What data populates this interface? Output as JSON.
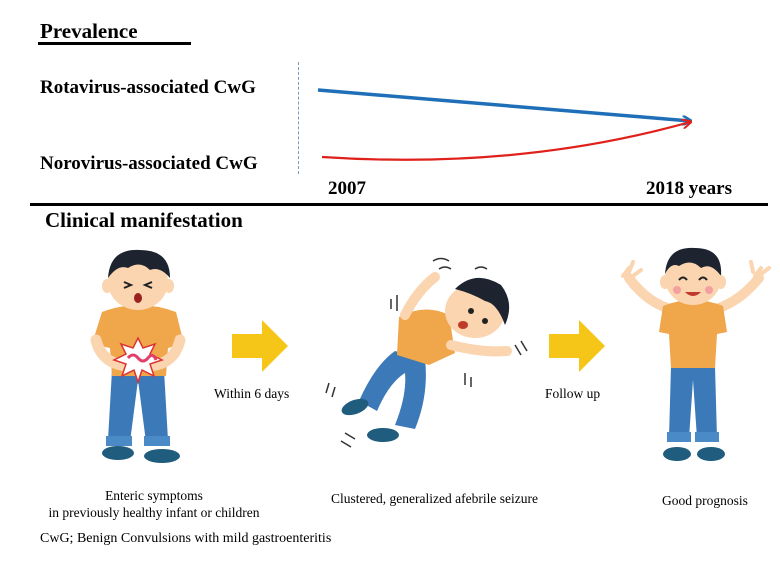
{
  "prevalence": {
    "title": "Prevalence",
    "rotavirus_label": "Rotavirus-associated CwG",
    "norovirus_label": "Norovirus-associated CwG",
    "axis_start": "2007",
    "axis_end": "2018 years",
    "rotavirus_color": "#1f6fb8",
    "norovirus_color": "#e0201a"
  },
  "clinical": {
    "title": "Clinical manifestation",
    "stage1_caption_line1": "Enteric symptoms",
    "stage1_caption_line2": "in previously healthy infant or children",
    "arrow1_label": "Within 6 days",
    "stage2_caption": "Clustered, generalized afebrile seizure",
    "arrow2_label": "Follow up",
    "stage3_caption": "Good prognosis",
    "arrow_color": "#f5c518"
  },
  "footnote": "CwG; Benign Convulsions with mild gastroenteritis"
}
